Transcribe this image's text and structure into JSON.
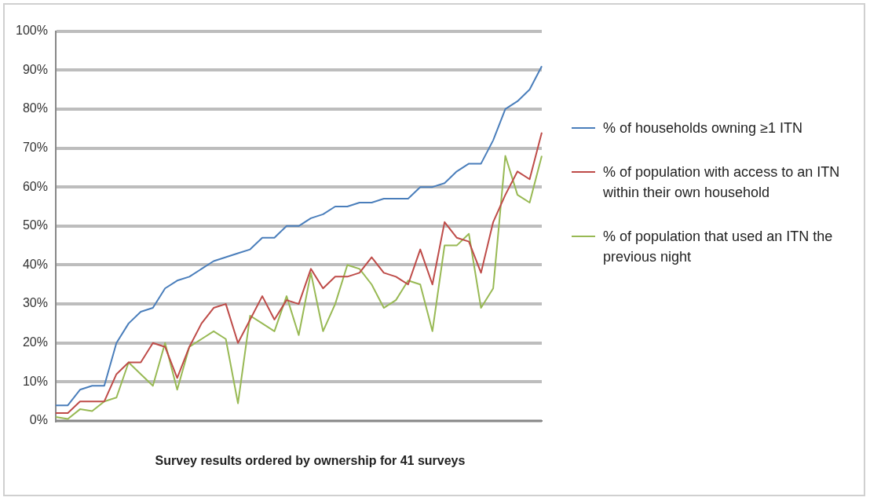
{
  "chart_data": {
    "type": "line",
    "xlabel": "Survey results ordered by ownership for 41 surveys",
    "categories": [
      null,
      null,
      null,
      null,
      null,
      null,
      null,
      null,
      null,
      null,
      null,
      null,
      null,
      null,
      null,
      null,
      null,
      null,
      null,
      null,
      null,
      null,
      null,
      null,
      null,
      null,
      null,
      null,
      null,
      null,
      null,
      null,
      null,
      null,
      null,
      null,
      null,
      null,
      null,
      null,
      null
    ],
    "series": [
      {
        "name": "% of households owning ≥1 ITN",
        "color": "#4a7ebb",
        "values": [
          4,
          4,
          8,
          9,
          9,
          20,
          25,
          28,
          29,
          34,
          36,
          37,
          39,
          41,
          42,
          43,
          44,
          47,
          47,
          50,
          50,
          52,
          53,
          55,
          55,
          56,
          56,
          57,
          57,
          57,
          60,
          60,
          61,
          64,
          66,
          66,
          72,
          80,
          82,
          85,
          91
        ]
      },
      {
        "name": "% of population with access to an ITN within their own household",
        "color": "#be4b48",
        "values": [
          2,
          2,
          5,
          5,
          5,
          12,
          15,
          15,
          20,
          19,
          11,
          19,
          25,
          29,
          30,
          20,
          26,
          32,
          26,
          31,
          30,
          39,
          34,
          37,
          37,
          38,
          42,
          38,
          37,
          35,
          44,
          35,
          51,
          47,
          46,
          38,
          51,
          58,
          64,
          62,
          74
        ]
      },
      {
        "name": "% of population that used an ITN the previous night",
        "color": "#98b954",
        "values": [
          1,
          0.5,
          3,
          2.5,
          5,
          6,
          15,
          12,
          9,
          20,
          8,
          19,
          21,
          23,
          21,
          4.5,
          27,
          25,
          23,
          32,
          22,
          38,
          23,
          30,
          40,
          39,
          35,
          29,
          31,
          36,
          35,
          23,
          45,
          45,
          48,
          29,
          34,
          68,
          58,
          56,
          68
        ]
      }
    ],
    "ylim": [
      0,
      100
    ],
    "yticks": [
      {
        "value": 0,
        "label": "0%"
      },
      {
        "value": 10,
        "label": "10%"
      },
      {
        "value": 20,
        "label": "20%"
      },
      {
        "value": 30,
        "label": "30%"
      },
      {
        "value": 40,
        "label": "40%"
      },
      {
        "value": 50,
        "label": "50%"
      },
      {
        "value": 60,
        "label": "60%"
      },
      {
        "value": 70,
        "label": "70%"
      },
      {
        "value": 80,
        "label": "80%"
      },
      {
        "value": 90,
        "label": "90%"
      },
      {
        "value": 100,
        "label": "100%"
      }
    ],
    "grid": "y",
    "legend": "right",
    "marker": "none",
    "line_style": "solid"
  }
}
